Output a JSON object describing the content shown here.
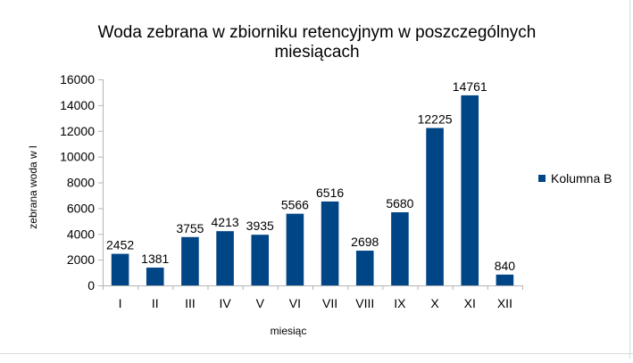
{
  "chart_data": {
    "type": "bar",
    "title_lines": [
      "Woda zebrana w zbiorniku retencyjnym w poszczególnych",
      "miesiącach"
    ],
    "xlabel": "miesiąc",
    "ylabel": "zebrana woda w l",
    "categories": [
      "I",
      "II",
      "III",
      "IV",
      "V",
      "VI",
      "VII",
      "VIII",
      "IX",
      "X",
      "XI",
      "XII"
    ],
    "series": [
      {
        "name": "Kolumna B",
        "color": "#004586",
        "values": [
          2452,
          1381,
          3755,
          4213,
          3935,
          5566,
          6516,
          2698,
          5680,
          12225,
          14761,
          840
        ]
      }
    ],
    "ylim": [
      0,
      16000
    ],
    "yticks": [
      0,
      2000,
      4000,
      6000,
      8000,
      10000,
      12000,
      14000,
      16000
    ],
    "data_labels": true,
    "grid": false,
    "legend": "right"
  }
}
